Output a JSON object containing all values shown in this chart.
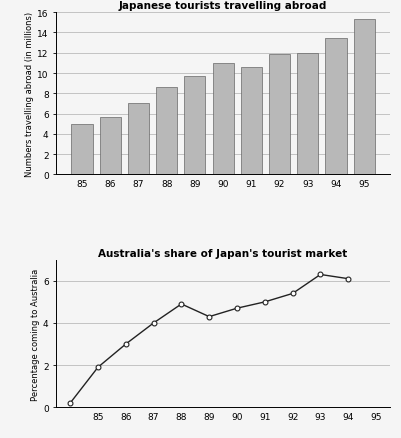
{
  "bar_years": [
    "85",
    "86",
    "87",
    "88",
    "89",
    "90",
    "91",
    "92",
    "93",
    "94",
    "95"
  ],
  "bar_values": [
    5.0,
    5.7,
    7.0,
    8.6,
    9.7,
    11.0,
    10.6,
    11.9,
    12.0,
    13.5,
    15.3
  ],
  "bar_color": "#b8b8b8",
  "bar_edgecolor": "#666666",
  "bar_title": "Japanese tourists travelling abroad",
  "bar_ylabel": "Numbers travelling abroad (in millions)",
  "bar_ylim": [
    0,
    16
  ],
  "bar_yticks": [
    0,
    2,
    4,
    6,
    8,
    10,
    12,
    14,
    16
  ],
  "line_years": [
    84.0,
    85,
    86,
    87,
    88,
    89,
    90,
    91,
    92,
    93,
    94
  ],
  "line_values": [
    0.2,
    1.9,
    3.0,
    4.0,
    4.9,
    4.3,
    4.7,
    5.0,
    5.4,
    6.3,
    6.1
  ],
  "line_color": "#222222",
  "line_marker": "o",
  "line_markersize": 3.5,
  "line_title": "Australia's share of Japan's tourist market",
  "line_ylabel": "Percentage coming to Australia",
  "line_ylim": [
    0,
    7
  ],
  "line_yticks": [
    0,
    2,
    4,
    6
  ],
  "line_xticks": [
    85,
    86,
    87,
    88,
    89,
    90,
    91,
    92,
    93,
    94,
    95
  ],
  "line_xlim": [
    83.5,
    95.5
  ],
  "bg_color": "#f5f5f5",
  "grid_color": "#bbbbbb"
}
